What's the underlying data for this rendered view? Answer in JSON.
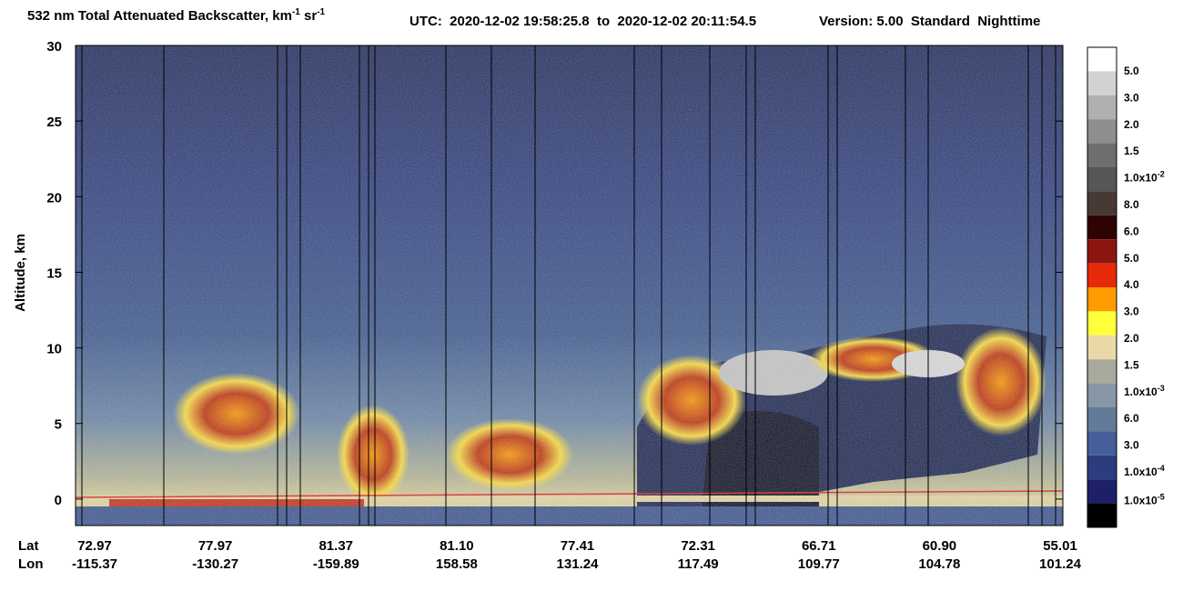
{
  "chart_data": {
    "type": "curtain",
    "title": [
      "532 nm Total Attenuated Backscatter, km",
      "-1",
      " sr",
      "-1"
    ],
    "utc": "UTC:  2020-12-02 19:58:25.8  to  2020-12-02 20:11:54.5",
    "version": "Version: 5.00  Standard  Nighttime",
    "ylabel": "Altitude, km",
    "ylim": [
      -1.75,
      30
    ],
    "yticks": [
      0,
      5,
      10,
      15,
      20,
      25,
      30
    ],
    "lat_label": "Lat",
    "lon_label": "Lon",
    "lat": [
      "72.97",
      "77.97",
      "81.37",
      "81.10",
      "77.41",
      "72.31",
      "66.71",
      "60.90",
      "55.01"
    ],
    "lon": [
      "-115.37",
      "-130.27",
      "-159.89",
      "158.58",
      "131.24",
      "117.49",
      "109.77",
      "104.78",
      "101.24"
    ],
    "colorbar": {
      "colors": [
        "#ffffff",
        "#d2d2d2",
        "#b0b0b0",
        "#8e8e8e",
        "#6e6e6e",
        "#565656",
        "#473a35",
        "#2e0303",
        "#8c1510",
        "#e62a0a",
        "#ff9a00",
        "#ffff3c",
        "#e9d9a8",
        "#a9aa9d",
        "#8797a6",
        "#627b98",
        "#45609a",
        "#2b3d7e",
        "#1d2068",
        "#000000"
      ],
      "labels": [
        "5.0",
        "3.0",
        "2.0",
        "1.5",
        {
          "text": "1.0x10",
          "exp": "-2"
        },
        "8.0",
        "6.0",
        "5.0",
        "4.0",
        "3.0",
        "2.0",
        "1.5",
        {
          "text": "1.0x10",
          "exp": "-3"
        },
        "6.0",
        "3.0",
        {
          "text": "1.0x10",
          "exp": "-4"
        },
        {
          "text": "1.0x10",
          "exp": "-5"
        }
      ]
    }
  }
}
